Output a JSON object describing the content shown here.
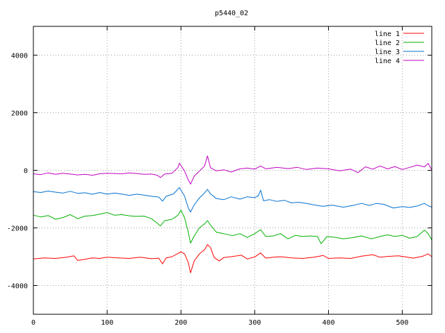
{
  "chart_data": {
    "type": "line",
    "title": "p5440_02",
    "xlabel": "",
    "ylabel": "",
    "xlim": [
      0,
      540
    ],
    "ylim": [
      -5000,
      5000
    ],
    "xticks": [
      0,
      100,
      200,
      300,
      400,
      500
    ],
    "yticks": [
      -4000,
      -2000,
      0,
      2000,
      4000
    ],
    "grid": true,
    "legend_position": "top-right",
    "series": [
      {
        "name": "line 1",
        "color": "#ff0000",
        "points": [
          [
            0,
            -3080
          ],
          [
            15,
            -3040
          ],
          [
            30,
            -3060
          ],
          [
            45,
            -3020
          ],
          [
            55,
            -2970
          ],
          [
            60,
            -3130
          ],
          [
            70,
            -3090
          ],
          [
            80,
            -3040
          ],
          [
            90,
            -3060
          ],
          [
            100,
            -3020
          ],
          [
            115,
            -3040
          ],
          [
            130,
            -3060
          ],
          [
            145,
            -3020
          ],
          [
            160,
            -3070
          ],
          [
            170,
            -3050
          ],
          [
            175,
            -3250
          ],
          [
            180,
            -3040
          ],
          [
            188,
            -3000
          ],
          [
            195,
            -2900
          ],
          [
            200,
            -2830
          ],
          [
            205,
            -2900
          ],
          [
            210,
            -3200
          ],
          [
            213,
            -3560
          ],
          [
            218,
            -3150
          ],
          [
            225,
            -2900
          ],
          [
            232,
            -2760
          ],
          [
            236,
            -2580
          ],
          [
            240,
            -2680
          ],
          [
            245,
            -3030
          ],
          [
            252,
            -3150
          ],
          [
            258,
            -3030
          ],
          [
            268,
            -3000
          ],
          [
            282,
            -2950
          ],
          [
            290,
            -3080
          ],
          [
            300,
            -3010
          ],
          [
            308,
            -2870
          ],
          [
            315,
            -3050
          ],
          [
            325,
            -3020
          ],
          [
            335,
            -3000
          ],
          [
            350,
            -3040
          ],
          [
            365,
            -3060
          ],
          [
            380,
            -3020
          ],
          [
            393,
            -2960
          ],
          [
            400,
            -3060
          ],
          [
            415,
            -3040
          ],
          [
            430,
            -3060
          ],
          [
            445,
            -2980
          ],
          [
            460,
            -2930
          ],
          [
            470,
            -3020
          ],
          [
            480,
            -2990
          ],
          [
            495,
            -2970
          ],
          [
            505,
            -3010
          ],
          [
            515,
            -3050
          ],
          [
            528,
            -2980
          ],
          [
            535,
            -2900
          ],
          [
            540,
            -3000
          ]
        ]
      },
      {
        "name": "line 2",
        "color": "#00b000",
        "points": [
          [
            0,
            -1560
          ],
          [
            10,
            -1620
          ],
          [
            20,
            -1570
          ],
          [
            30,
            -1700
          ],
          [
            40,
            -1640
          ],
          [
            50,
            -1540
          ],
          [
            60,
            -1680
          ],
          [
            70,
            -1590
          ],
          [
            80,
            -1570
          ],
          [
            90,
            -1520
          ],
          [
            100,
            -1470
          ],
          [
            110,
            -1560
          ],
          [
            120,
            -1540
          ],
          [
            130,
            -1580
          ],
          [
            140,
            -1600
          ],
          [
            150,
            -1590
          ],
          [
            160,
            -1680
          ],
          [
            168,
            -1840
          ],
          [
            172,
            -1930
          ],
          [
            178,
            -1750
          ],
          [
            188,
            -1700
          ],
          [
            196,
            -1560
          ],
          [
            200,
            -1380
          ],
          [
            205,
            -1650
          ],
          [
            210,
            -2150
          ],
          [
            213,
            -2530
          ],
          [
            218,
            -2280
          ],
          [
            225,
            -2000
          ],
          [
            232,
            -1860
          ],
          [
            236,
            -1750
          ],
          [
            240,
            -1900
          ],
          [
            248,
            -2150
          ],
          [
            258,
            -2200
          ],
          [
            270,
            -2270
          ],
          [
            280,
            -2200
          ],
          [
            290,
            -2330
          ],
          [
            300,
            -2200
          ],
          [
            308,
            -2060
          ],
          [
            315,
            -2300
          ],
          [
            325,
            -2280
          ],
          [
            335,
            -2200
          ],
          [
            345,
            -2380
          ],
          [
            355,
            -2260
          ],
          [
            365,
            -2300
          ],
          [
            375,
            -2280
          ],
          [
            385,
            -2300
          ],
          [
            390,
            -2550
          ],
          [
            398,
            -2300
          ],
          [
            410,
            -2330
          ],
          [
            420,
            -2380
          ],
          [
            432,
            -2340
          ],
          [
            445,
            -2280
          ],
          [
            458,
            -2380
          ],
          [
            470,
            -2300
          ],
          [
            480,
            -2240
          ],
          [
            490,
            -2300
          ],
          [
            500,
            -2260
          ],
          [
            510,
            -2360
          ],
          [
            520,
            -2300
          ],
          [
            530,
            -2080
          ],
          [
            535,
            -2200
          ],
          [
            540,
            -2420
          ]
        ]
      },
      {
        "name": "line 3",
        "color": "#0070d0",
        "points": [
          [
            0,
            -740
          ],
          [
            10,
            -770
          ],
          [
            20,
            -720
          ],
          [
            30,
            -760
          ],
          [
            40,
            -790
          ],
          [
            50,
            -730
          ],
          [
            60,
            -800
          ],
          [
            70,
            -780
          ],
          [
            80,
            -830
          ],
          [
            90,
            -770
          ],
          [
            100,
            -830
          ],
          [
            110,
            -790
          ],
          [
            120,
            -830
          ],
          [
            130,
            -870
          ],
          [
            140,
            -830
          ],
          [
            150,
            -860
          ],
          [
            160,
            -900
          ],
          [
            170,
            -930
          ],
          [
            175,
            -1070
          ],
          [
            180,
            -900
          ],
          [
            190,
            -820
          ],
          [
            195,
            -680
          ],
          [
            198,
            -600
          ],
          [
            205,
            -900
          ],
          [
            210,
            -1310
          ],
          [
            213,
            -1450
          ],
          [
            218,
            -1200
          ],
          [
            225,
            -960
          ],
          [
            230,
            -840
          ],
          [
            236,
            -660
          ],
          [
            240,
            -820
          ],
          [
            248,
            -980
          ],
          [
            258,
            -1020
          ],
          [
            268,
            -920
          ],
          [
            280,
            -1000
          ],
          [
            290,
            -920
          ],
          [
            300,
            -950
          ],
          [
            305,
            -880
          ],
          [
            308,
            -690
          ],
          [
            312,
            -1060
          ],
          [
            320,
            -1020
          ],
          [
            330,
            -1080
          ],
          [
            340,
            -1040
          ],
          [
            350,
            -1130
          ],
          [
            360,
            -1110
          ],
          [
            370,
            -1150
          ],
          [
            380,
            -1200
          ],
          [
            392,
            -1250
          ],
          [
            405,
            -1210
          ],
          [
            420,
            -1280
          ],
          [
            433,
            -1220
          ],
          [
            445,
            -1150
          ],
          [
            455,
            -1220
          ],
          [
            465,
            -1150
          ],
          [
            475,
            -1180
          ],
          [
            488,
            -1310
          ],
          [
            500,
            -1260
          ],
          [
            510,
            -1290
          ],
          [
            520,
            -1240
          ],
          [
            530,
            -1150
          ],
          [
            535,
            -1230
          ],
          [
            540,
            -1280
          ]
        ]
      },
      {
        "name": "line 4",
        "color": "#c000c0",
        "points": [
          [
            0,
            -120
          ],
          [
            10,
            -150
          ],
          [
            20,
            -90
          ],
          [
            30,
            -140
          ],
          [
            40,
            -100
          ],
          [
            50,
            -130
          ],
          [
            60,
            -160
          ],
          [
            70,
            -140
          ],
          [
            80,
            -170
          ],
          [
            90,
            -120
          ],
          [
            100,
            -100
          ],
          [
            110,
            -110
          ],
          [
            120,
            -120
          ],
          [
            130,
            -90
          ],
          [
            140,
            -110
          ],
          [
            150,
            -140
          ],
          [
            160,
            -130
          ],
          [
            168,
            -170
          ],
          [
            172,
            -250
          ],
          [
            178,
            -130
          ],
          [
            188,
            -100
          ],
          [
            196,
            100
          ],
          [
            198,
            250
          ],
          [
            205,
            -30
          ],
          [
            210,
            -330
          ],
          [
            213,
            -480
          ],
          [
            218,
            -200
          ],
          [
            225,
            -30
          ],
          [
            232,
            150
          ],
          [
            236,
            500
          ],
          [
            240,
            90
          ],
          [
            248,
            -20
          ],
          [
            258,
            20
          ],
          [
            268,
            -60
          ],
          [
            280,
            50
          ],
          [
            290,
            80
          ],
          [
            300,
            40
          ],
          [
            308,
            150
          ],
          [
            315,
            50
          ],
          [
            330,
            100
          ],
          [
            345,
            60
          ],
          [
            358,
            100
          ],
          [
            370,
            30
          ],
          [
            385,
            80
          ],
          [
            400,
            50
          ],
          [
            415,
            -20
          ],
          [
            430,
            40
          ],
          [
            440,
            -80
          ],
          [
            450,
            120
          ],
          [
            460,
            40
          ],
          [
            470,
            150
          ],
          [
            480,
            50
          ],
          [
            490,
            130
          ],
          [
            500,
            30
          ],
          [
            510,
            100
          ],
          [
            520,
            180
          ],
          [
            530,
            120
          ],
          [
            535,
            240
          ],
          [
            540,
            20
          ]
        ]
      }
    ]
  }
}
